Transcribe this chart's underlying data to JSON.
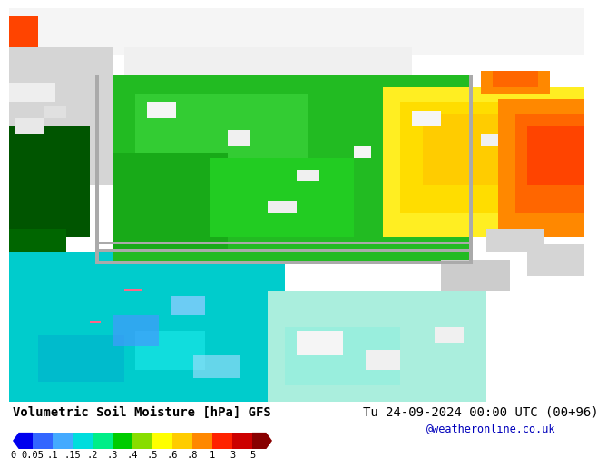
{
  "title_left": "Volumetric Soil Moisture [hPa] GFS",
  "title_right": "Tu 24-09-2024 00:00 UTC (00+96)",
  "credit": "@weatheronline.co.uk",
  "colorbar_tick_labels": [
    "0",
    "0.05",
    ".1",
    ".15",
    ".2",
    ".3",
    ".4",
    ".5",
    ".6",
    ".8",
    "1",
    "3",
    "5"
  ],
  "colorbar_colors": [
    "#0000ee",
    "#3366ff",
    "#44aaff",
    "#00dddd",
    "#00ee88",
    "#00cc00",
    "#88dd00",
    "#ffff00",
    "#ffcc00",
    "#ff8800",
    "#ff2200",
    "#cc0000",
    "#880000"
  ],
  "bg_color": "#ffffff",
  "land_gray": "#d0d0d0",
  "sea_white": "#f0f0f0",
  "title_fontsize": 10,
  "credit_color": "#0000bb",
  "colorbar_label_fontsize": 7.5
}
